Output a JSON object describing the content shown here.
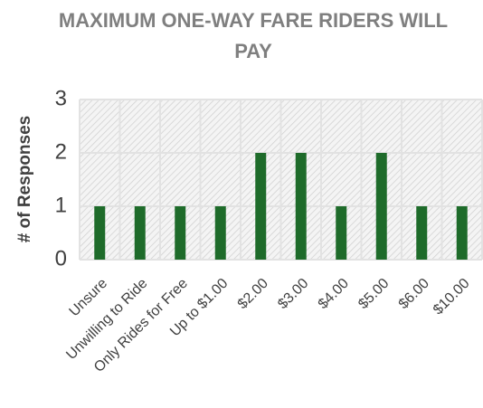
{
  "chart_data": {
    "type": "bar",
    "title": "MAXIMUM ONE-WAY FARE RIDERS WILL PAY",
    "y_label": "# of Responses",
    "categories": [
      "Unsure",
      "Unwilling to Ride",
      "Only Rides for Free",
      "Up to $1.00",
      "$2.00",
      "$3.00",
      "$4.00",
      "$5.00",
      "$6.00",
      "$10.00"
    ],
    "values": [
      1,
      1,
      1,
      1,
      2,
      2,
      1,
      2,
      1,
      1
    ],
    "color": "#1e6b2a",
    "ylim": [
      0,
      3
    ],
    "yticks": [
      0,
      1,
      2,
      3
    ],
    "grid": true
  }
}
